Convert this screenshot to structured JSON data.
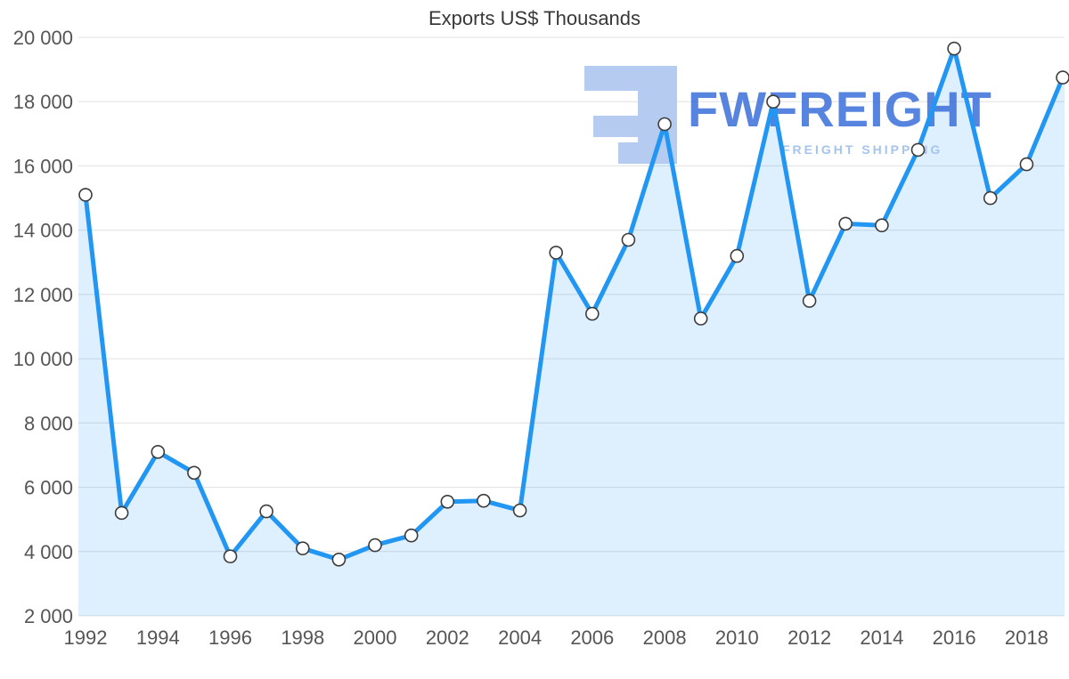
{
  "title": "Exports US$ Thousands",
  "watermark": {
    "brand": "FWFREIGHT",
    "tagline": "FREIGHT SHIPPING"
  },
  "chart_data": {
    "type": "area",
    "title": "Exports US$ Thousands",
    "x": [
      1992,
      1993,
      1994,
      1995,
      1996,
      1997,
      1998,
      1999,
      2000,
      2001,
      2002,
      2003,
      2004,
      2005,
      2006,
      2007,
      2008,
      2009,
      2010,
      2011,
      2012,
      2013,
      2014,
      2015,
      2016,
      2017,
      2018,
      2019
    ],
    "values": [
      15100,
      5200,
      7100,
      6450,
      3850,
      5250,
      4100,
      3750,
      4200,
      4500,
      5550,
      5580,
      5280,
      13300,
      11400,
      13700,
      17300,
      11250,
      13200,
      18000,
      11800,
      14200,
      14150,
      16500,
      19650,
      15000,
      16050,
      18750
    ],
    "x_tick_years": [
      1992,
      1994,
      1996,
      1998,
      2000,
      2002,
      2004,
      2006,
      2008,
      2010,
      2012,
      2014,
      2016,
      2018
    ],
    "y_ticks": [
      20000,
      18000,
      16000,
      14000,
      12000,
      10000,
      8000,
      6000,
      4000,
      2000
    ],
    "y_tick_labels": [
      "20 000",
      "18 000",
      "16 000",
      "14 000",
      "12 000",
      "10 000",
      "8 000",
      "6 000",
      "4 000",
      "2 000"
    ],
    "ylim": [
      2000,
      20000
    ],
    "xlabel": "",
    "ylabel": "",
    "grid": "horizontal",
    "legend": "none",
    "marker": "circle",
    "colors": {
      "line": "#2196f3",
      "fill": "rgba(33,150,243,0.15)",
      "marker_fill": "#ffffff",
      "marker_stroke": "#3c3c3c",
      "grid": "#e0e0e0",
      "axis_text": "#555555",
      "title_text": "#383838",
      "watermark_text": "#3a6fd8",
      "watermark_tagline": "#a6c4ec",
      "watermark_logo": "#b5cbf0"
    }
  }
}
